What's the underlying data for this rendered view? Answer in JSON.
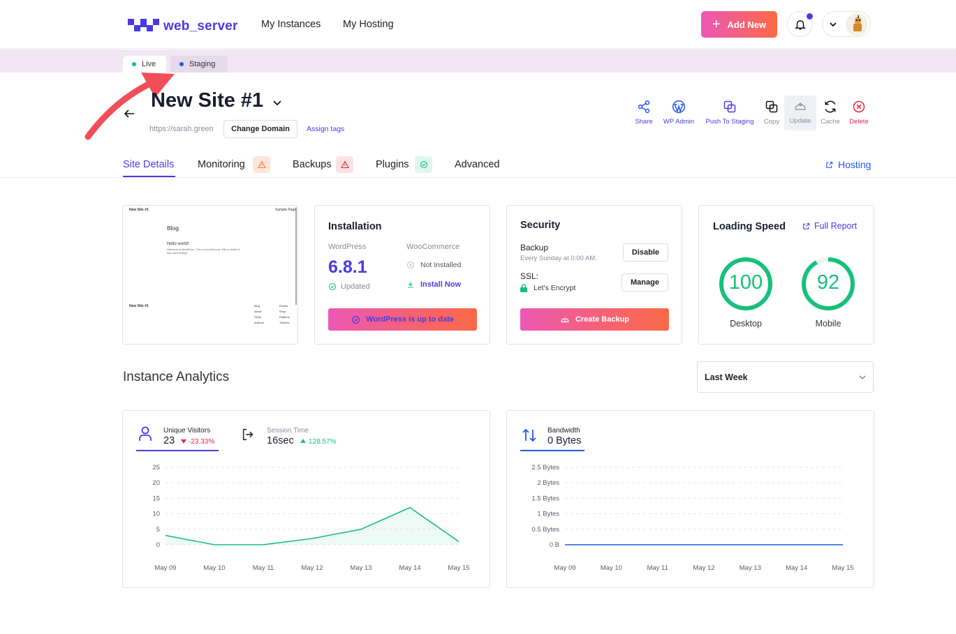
{
  "header": {
    "logo_text": "web_server",
    "nav": [
      "My Instances",
      "My Hosting"
    ],
    "add_new_label": "Add New",
    "brand_color": "#4a3be0"
  },
  "env_tabs": [
    {
      "label": "Live",
      "dot_color": "#17c07c"
    },
    {
      "label": "Staging",
      "dot_color": "#2457e6"
    }
  ],
  "site": {
    "title": "New Site #1",
    "url": "https://sarah.green",
    "change_domain_label": "Change Domain",
    "assign_tags_label": "Assign tags"
  },
  "actions": [
    "Share",
    "WP Admin",
    "Push To Staging",
    "Copy",
    "Update",
    "Cache",
    "Delete"
  ],
  "tabs": {
    "site_details": "Site Details",
    "monitoring": "Monitoring",
    "backups": "Backups",
    "plugins": "Plugins",
    "advanced": "Advanced",
    "hosting": "Hosting"
  },
  "preview": {
    "site_name": "New Site #1",
    "sample_page": "Sample Page",
    "blog": "Blog",
    "hello": "Hello world!",
    "welcome": "Welcome to WordPress. This is your first post. Edit or delete it, then start writing!",
    "footer_site": "New Site #1",
    "footer_col1": [
      "Blog",
      "About",
      "FAQs",
      "Authors"
    ],
    "footer_col2": [
      "Events",
      "Shop",
      "Patterns",
      "Themes"
    ]
  },
  "installation": {
    "title": "Installation",
    "wp_label": "WordPress",
    "wp_version": "6.8.1",
    "wp_status": "Updated",
    "woo_label": "WooCommerce",
    "woo_status": "Not Installed",
    "woo_action": "Install Now",
    "button": "WordPress is up to date"
  },
  "security": {
    "title": "Security",
    "backup_label": "Backup",
    "backup_schedule": "Every Sunday at 0:00 AM.",
    "disable_label": "Disable",
    "ssl_label": "SSL:",
    "ssl_value": "Let's Encrypt",
    "manage_label": "Manage",
    "button": "Create Backup"
  },
  "speed": {
    "title": "Loading Speed",
    "report_link": "Full Report",
    "desktop_score": "100",
    "desktop_label": "Desktop",
    "mobile_score": "92",
    "mobile_label": "Mobile",
    "desktop_fraction": 1.0,
    "mobile_fraction": 0.92
  },
  "analytics": {
    "title": "Instance Analytics",
    "range": "Last Week",
    "visitors_label": "Unique Visitors",
    "visitors_value": "23",
    "visitors_change": "-23.33%",
    "session_label": "Session Time",
    "session_value": "16sec",
    "session_change": "128.57%",
    "bandwidth_label": "Bandwidth",
    "bandwidth_value": "0 Bytes"
  },
  "chart_data": [
    {
      "type": "area",
      "categories": [
        "May 09",
        "May 10",
        "May 11",
        "May 12",
        "May 13",
        "May 14",
        "May 15"
      ],
      "series": [
        {
          "name": "Unique Visitors",
          "values": [
            3,
            0,
            0,
            2,
            5,
            12,
            1
          ]
        }
      ],
      "yticks": [
        "0",
        "5",
        "10",
        "15",
        "20",
        "25"
      ],
      "ylim": [
        0,
        25
      ],
      "grid": true,
      "color": "#17c07c"
    },
    {
      "type": "line",
      "categories": [
        "May 09",
        "May 10",
        "May 11",
        "May 12",
        "May 13",
        "May 14",
        "May 15"
      ],
      "series": [
        {
          "name": "Bandwidth",
          "values": [
            0,
            0,
            0,
            0,
            0,
            0,
            0
          ]
        }
      ],
      "yticks": [
        "0 B",
        "0.5 Bytes",
        "1 Bytes",
        "1.5 Bytes",
        "2 Bytes",
        "2.5 Bytes"
      ],
      "ylim": [
        0,
        2.5
      ],
      "grid": true,
      "color": "#2457e6"
    }
  ]
}
